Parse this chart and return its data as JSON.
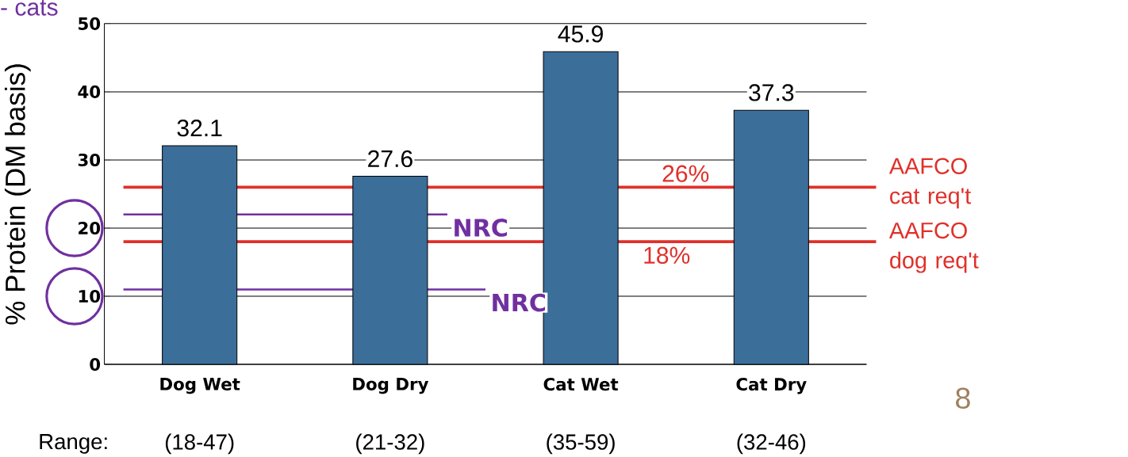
{
  "chart_data": {
    "type": "bar",
    "ylabel": "% Protein (DM basis)",
    "categories": [
      "Dog Wet",
      "Dog Dry",
      "Cat Wet",
      "Cat Dry"
    ],
    "values": [
      32.1,
      27.6,
      45.9,
      37.3
    ],
    "color": "#3b6e99",
    "data_labels": true,
    "ylim": [
      0,
      50
    ],
    "yticks": [
      0,
      10,
      20,
      30,
      40,
      50
    ],
    "grid": "y",
    "ref_lines": [
      {
        "axis": "y",
        "value": 26,
        "label": "26%",
        "color": "#e0302a"
      },
      {
        "axis": "y",
        "value": 18,
        "label": "18%",
        "color": "#e0302a"
      },
      {
        "axis": "y",
        "value": 22,
        "label": "NRC",
        "color": "#7030a0"
      },
      {
        "axis": "y",
        "value": 11,
        "label": "NRC",
        "color": "#7030a0"
      }
    ],
    "annotations": [
      "- cats",
      "Range:",
      "(18-47)",
      "(21-32)",
      "(35-59)",
      "(32-46)",
      "8",
      "AAFCO cat req't",
      "AAFCO dog req't"
    ]
  }
}
